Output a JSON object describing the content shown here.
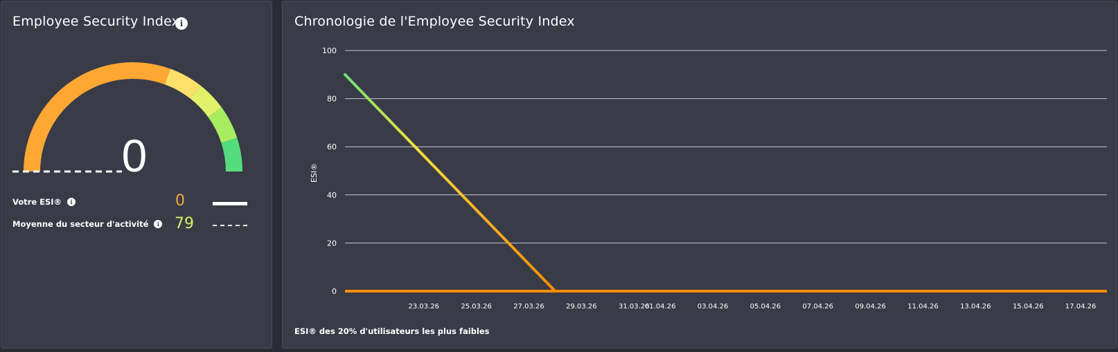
{
  "esi_panel": {
    "title": "Employee Security Index",
    "gauge_value": "0",
    "your_esi_label": "Votre ESI®",
    "your_esi_value": "0",
    "industry_avg_label": "Moyenne du secteur d'activité",
    "industry_avg_value": "79",
    "colors": {
      "your_value": "#f5a742",
      "industry_value": "#d8ef64",
      "gauge_segments": [
        "#ffa733",
        "#fde06a",
        "#e2f06a",
        "#a9ec61",
        "#55dd7d"
      ]
    }
  },
  "timeline_panel": {
    "title": "Chronologie de l'Employee Security Index",
    "footnote": "ESI® des 20% d'utilisateurs les plus faibles"
  },
  "chart_data": {
    "type": "line",
    "ylabel": "ESI®",
    "ylim": [
      0,
      100
    ],
    "yticks": [
      0,
      20,
      40,
      60,
      80,
      100
    ],
    "grid": true,
    "x_tick_labels": [
      "23.03.26",
      "25.03.26",
      "27.03.26",
      "29.03.26",
      "31.03.26",
      "01.04.26",
      "03.04.26",
      "05.04.26",
      "07.04.26",
      "09.04.26",
      "11.04.26",
      "13.04.26",
      "15.04.26",
      "17.04.26"
    ],
    "x_tick_dates": [
      "2026-03-23",
      "2026-03-25",
      "2026-03-27",
      "2026-03-29",
      "2026-03-31",
      "2026-04-01",
      "2026-04-03",
      "2026-04-05",
      "2026-04-07",
      "2026-04-09",
      "2026-04-11",
      "2026-04-13",
      "2026-04-15",
      "2026-04-17"
    ],
    "x_range": [
      "2026-03-20",
      "2026-04-18"
    ],
    "series": [
      {
        "dates": [
          "2026-03-20",
          "2026-03-28"
        ],
        "values": [
          90,
          0
        ],
        "color_gradient": [
          "#6fe07a",
          "#f2e23c",
          "#ffb020",
          "#ff8c00"
        ]
      },
      {
        "dates": [
          "2026-03-20",
          "2026-04-18"
        ],
        "values": [
          0,
          0
        ],
        "color": "#ff8c00"
      }
    ]
  }
}
